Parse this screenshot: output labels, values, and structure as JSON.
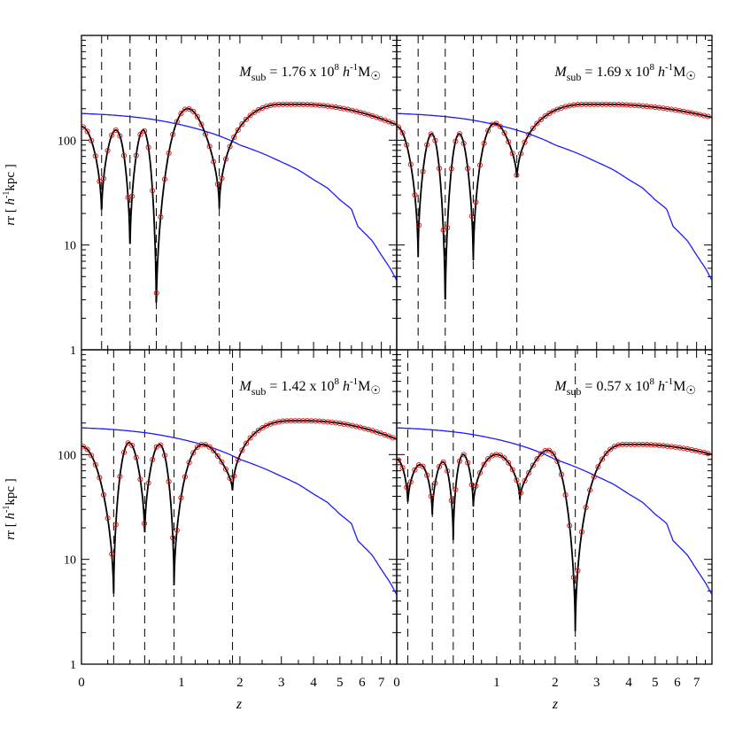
{
  "chart_data": {
    "type": "line",
    "layout": "2x2 panels, shared axes",
    "xlabel": "z",
    "ylabel_main": "r [ ",
    "ylabel_units": "h",
    "ylabel_exp": "-1",
    "ylabel_tail": "kpc ]",
    "xscale": "log(1+z)",
    "yscale": "log",
    "xlim": [
      0,
      7.9
    ],
    "ylim": [
      1,
      1000
    ],
    "xticks": [
      0,
      1,
      2,
      3,
      4,
      5,
      6,
      7
    ],
    "xticklabels": [
      "0",
      "1",
      "2",
      "3",
      "4",
      "5",
      "6",
      "7"
    ],
    "yticks": [
      1,
      10,
      100
    ],
    "yticklabels": [
      "1",
      "10",
      "100"
    ],
    "colors": {
      "orbit_line": "#000000",
      "orbit_points": "#dd1111",
      "host_radius": "#1a1aff",
      "pericenter_marks": "#000000"
    },
    "panels": [
      {
        "label_symbol": "M",
        "label_sub": "sub",
        "label_eq": " = ",
        "label_value": "1.76 x 10",
        "label_exp": "8",
        "label_h": "h",
        "label_hexp": "-1",
        "label_unit": "M",
        "label_sun": "☉",
        "pericenters_z": [
          0.15,
          0.4,
          0.68,
          1.6
        ],
        "pericenter_r": [
          18,
          7.5,
          2.0,
          21
        ],
        "apocenter_r": [
          135,
          125,
          125,
          200
        ],
        "final_r": 140,
        "max_r": 220
      },
      {
        "label_symbol": "M",
        "label_sub": "sub",
        "label_eq": " = ",
        "label_value": "1.69 x 10",
        "label_exp": "8",
        "label_h": "h",
        "label_hexp": "-1",
        "label_unit": "M",
        "label_sun": "☉",
        "pericenters_z": [
          0.16,
          0.4,
          0.7,
          1.3
        ],
        "pericenter_r": [
          7,
          1.9,
          6,
          40
        ],
        "apocenter_r": [
          135,
          115,
          115,
          145
        ],
        "final_r": 165,
        "max_r": 220
      },
      {
        "label_symbol": "M",
        "label_sub": "sub",
        "label_eq": " = ",
        "label_value": "1.42 x 10",
        "label_exp": "8",
        "label_h": "h",
        "label_hexp": "-1",
        "label_unit": "M",
        "label_sun": "☉",
        "pericenters_z": [
          0.25,
          0.55,
          0.9,
          1.85
        ],
        "pericenter_r": [
          4,
          15,
          5,
          42
        ],
        "apocenter_r": [
          120,
          130,
          125,
          125
        ],
        "final_r": 140,
        "max_r": 210
      },
      {
        "label_symbol": "M",
        "label_sub": "sub",
        "label_eq": " = ",
        "label_value": "0.57 x 10",
        "label_exp": "8",
        "label_h": "h",
        "label_hexp": "-1",
        "label_unit": "M",
        "label_sun": "☉",
        "pericenters_z": [
          0.08,
          0.28,
          0.48,
          0.7,
          1.35,
          2.45
        ],
        "pericenter_r": [
          32,
          25,
          14,
          30,
          35,
          1.8
        ],
        "apocenter_r": [
          90,
          80,
          85,
          100,
          100,
          110
        ],
        "final_r": 100,
        "max_r": 125
      }
    ],
    "host_radius_curve": {
      "z": [
        0,
        0.2,
        0.4,
        0.6,
        0.8,
        1.0,
        1.2,
        1.5,
        1.8,
        2.0,
        2.5,
        3.0,
        3.5,
        4.0,
        4.5,
        5.0,
        5.5,
        5.8,
        6.5,
        7.0,
        7.5,
        7.9
      ],
      "r": [
        180,
        175,
        168,
        160,
        150,
        140,
        130,
        115,
        100,
        90,
        75,
        62,
        52,
        42,
        35,
        27,
        22,
        15,
        11,
        8,
        6,
        4.6
      ]
    }
  }
}
